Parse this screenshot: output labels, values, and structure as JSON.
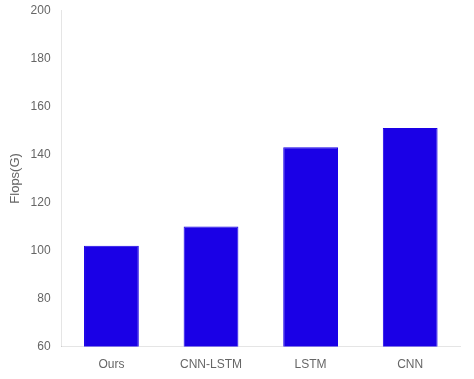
{
  "chart_data": {
    "type": "bar",
    "categories": [
      "Ours",
      "CNN-LSTM",
      "LSTM",
      "CNN"
    ],
    "values": [
      102,
      110,
      143,
      151
    ],
    "color": "#1a00e6",
    "ylabel": "Flops(G)",
    "ylim": [
      60,
      200
    ],
    "yticks": [
      60,
      80,
      100,
      120,
      140,
      160,
      180,
      200
    ],
    "grid": false
  }
}
